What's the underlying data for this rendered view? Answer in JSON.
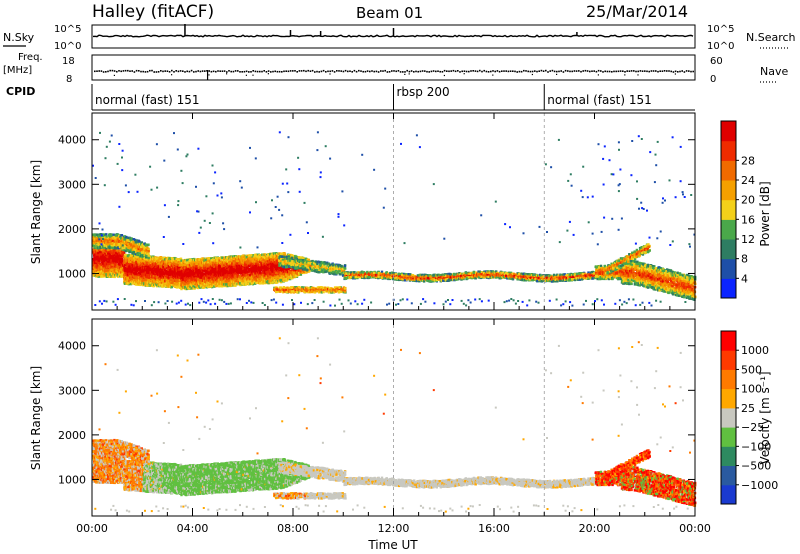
{
  "header": {
    "station": "Halley (fitACF)",
    "beam": "Beam 01",
    "date": "25/Mar/2014"
  },
  "strip_labels": {
    "nsky": "N.Sky",
    "nsearch": "N.Search",
    "freq_line1": "Freq.",
    "freq_line2": "[MHz]",
    "nave": "Nave",
    "cpid": "CPID",
    "noise_ticks": [
      "10^5",
      "10^0"
    ],
    "freq_left_ticks": [
      "18",
      "8"
    ],
    "nave_right_ticks": [
      "60",
      "0"
    ]
  },
  "cpid_segments": [
    {
      "start_h": 0,
      "label": "normal (fast) 151"
    },
    {
      "start_h": 12,
      "label": "rbsp 200"
    },
    {
      "start_h": 18,
      "label": "normal (fast) 151"
    }
  ],
  "colors": {
    "power_scale": [
      "#0b24ff",
      "#1e4fa8",
      "#2e7d62",
      "#4aa84a",
      "#f3d01a",
      "#f5a000",
      "#f06a00",
      "#ef2b00",
      "#e00000"
    ],
    "velocity_scale": [
      "#ff0000",
      "#ff3a00",
      "#ff7a00",
      "#ffa800",
      "#c8c8c0",
      "#60c040",
      "#2e8a60",
      "#2a5aa0",
      "#1a3ad0"
    ]
  },
  "chart_data": [
    {
      "type": "heatmap",
      "name": "power",
      "xlabel": "",
      "ylabel": "Slant Range [km]",
      "xlim_hours": [
        0,
        24
      ],
      "ylim_km": [
        180,
        4600
      ],
      "yticks": [
        1000,
        2000,
        3000,
        4000
      ],
      "colorbar": {
        "label": "Power [dB]",
        "ticks": [
          "4",
          "8",
          "12",
          "16",
          "20",
          "24",
          "28"
        ]
      }
    },
    {
      "type": "heatmap",
      "name": "velocity",
      "xlabel": "Time UT",
      "ylabel": "Slant Range [km]",
      "xlim_hours": [
        0,
        24
      ],
      "ylim_km": [
        180,
        4600
      ],
      "yticks": [
        1000,
        2000,
        3000,
        4000
      ],
      "xtick_labels": [
        "00:00",
        "04:00",
        "08:00",
        "12:00",
        "16:00",
        "20:00",
        "00:00"
      ],
      "colorbar": {
        "label": "Velocity [m s⁻¹]",
        "ticks": [
          "1000",
          "500",
          "100",
          "25",
          "−25",
          "−100",
          "−500",
          "−1000"
        ]
      }
    }
  ]
}
